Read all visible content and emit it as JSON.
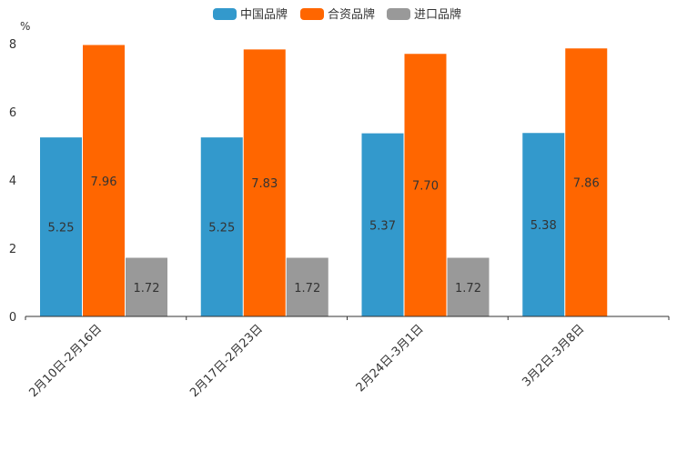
{
  "chart_data": {
    "type": "bar",
    "title": "",
    "ylabel": "%",
    "xlabel": "",
    "ylim": [
      0,
      8
    ],
    "yticks": [
      "0",
      "2",
      "4",
      "6",
      "8"
    ],
    "categories": [
      "2月10日-2月16日",
      "2月17日-2月23日",
      "2月24日-3月1日",
      "3月2日-3月8日"
    ],
    "series": [
      {
        "name": "中国品牌",
        "color": "#3399CC",
        "values": [
          5.25,
          5.25,
          5.37,
          5.38
        ],
        "labels": [
          "5.25",
          "5.25",
          "5.37",
          "5.38"
        ]
      },
      {
        "name": "合资品牌",
        "color": "#FF6600",
        "values": [
          7.96,
          7.83,
          7.7,
          7.86
        ],
        "labels": [
          "7.96",
          "7.83",
          "7.70",
          "7.86"
        ]
      },
      {
        "name": "进口品牌",
        "color": "#999999",
        "values": [
          1.72,
          1.72,
          1.72,
          null
        ],
        "labels": [
          "1.72",
          "1.72",
          "1.72",
          ""
        ]
      }
    ],
    "legend_position": "top-center",
    "grid": false
  }
}
